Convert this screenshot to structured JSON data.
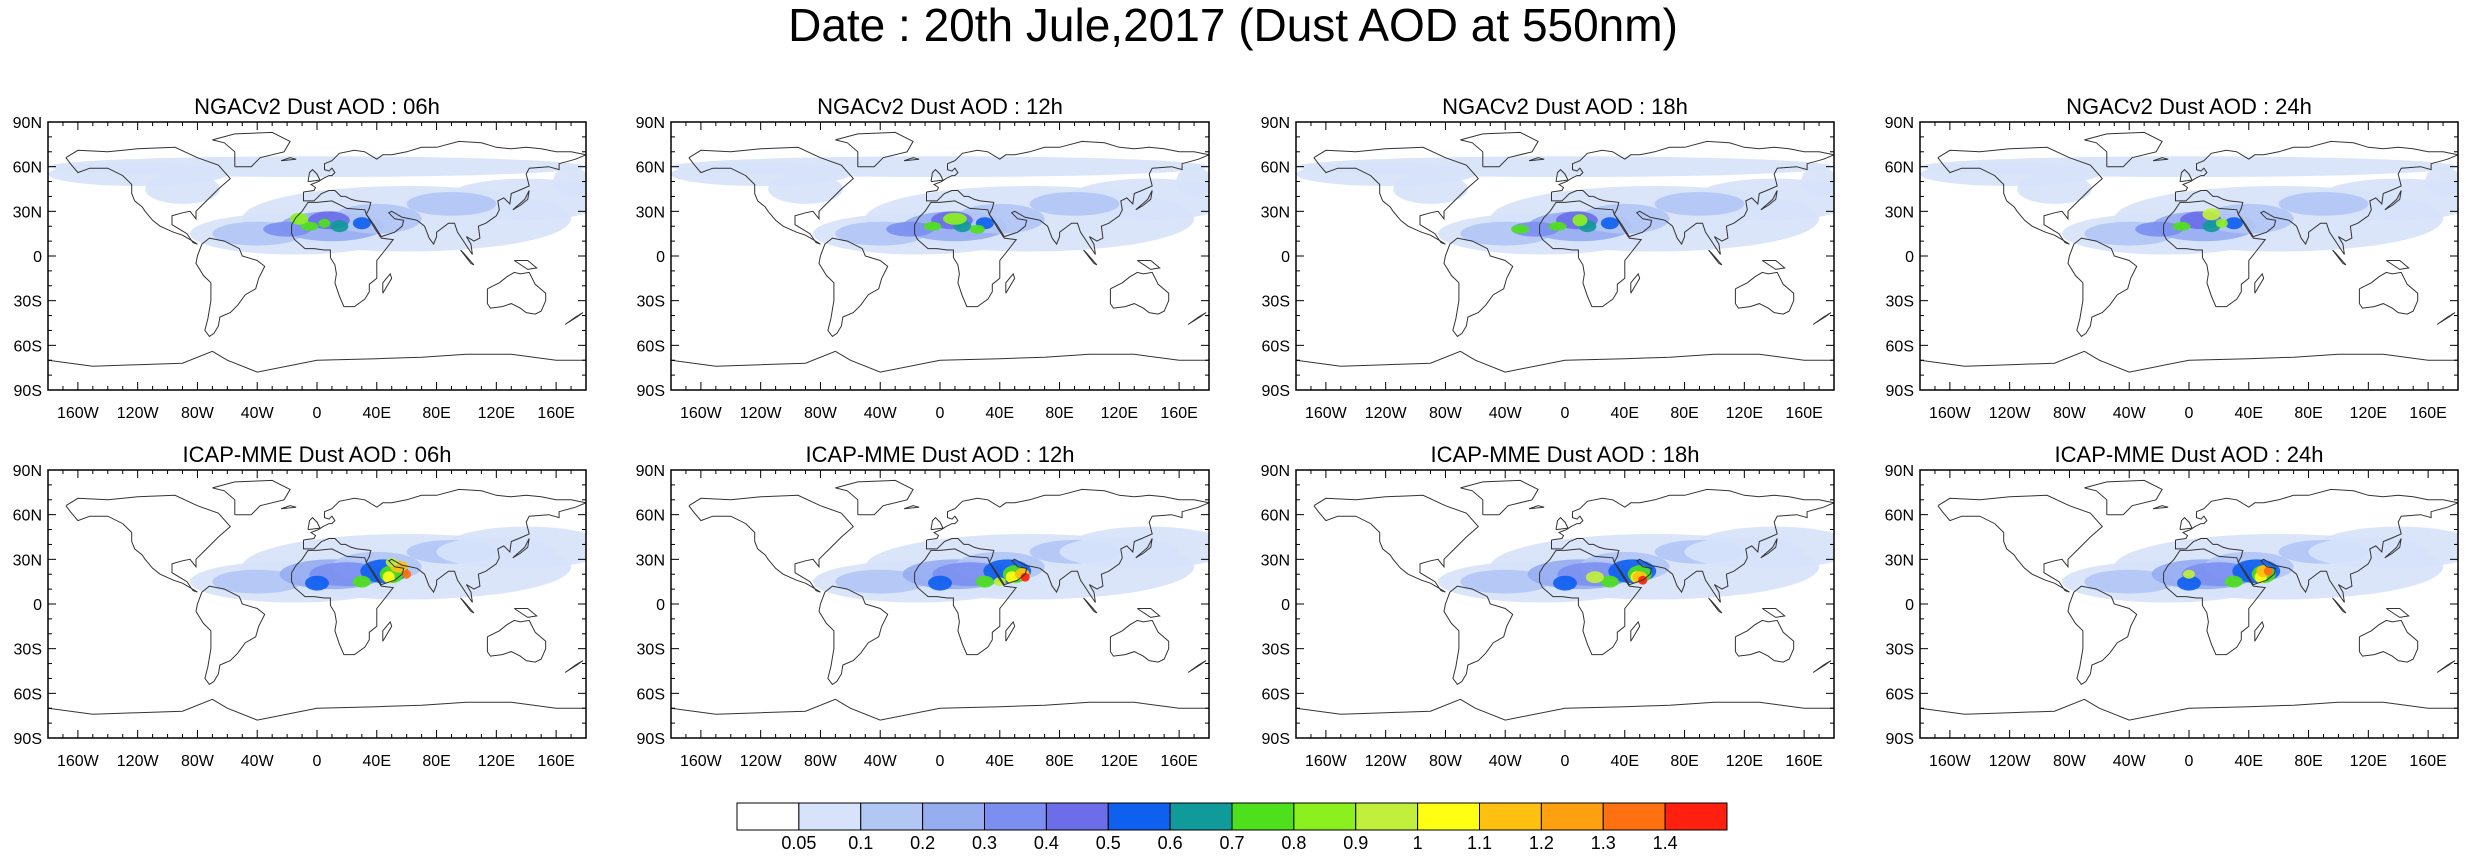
{
  "title": "Date : 20th Jule,2017 (Dust AOD at 550nm)",
  "lat_tick_labels": [
    "90N",
    "60N",
    "30N",
    "0",
    "30S",
    "60S",
    "90S"
  ],
  "lon_tick_labels": [
    "160W",
    "120W",
    "80W",
    "40W",
    "0",
    "40E",
    "80E",
    "120E",
    "160E"
  ],
  "panels": [
    {
      "title": "NGACv2 Dust AOD : 06h",
      "model": "NGACv2",
      "lead": "06h",
      "peak_aod": 0.9
    },
    {
      "title": "NGACv2 Dust AOD : 12h",
      "model": "NGACv2",
      "lead": "12h",
      "peak_aod": 0.9
    },
    {
      "title": "NGACv2 Dust AOD : 18h",
      "model": "NGACv2",
      "lead": "18h",
      "peak_aod": 0.9
    },
    {
      "title": "NGACv2 Dust AOD : 24h",
      "model": "NGACv2",
      "lead": "24h",
      "peak_aod": 1.0
    },
    {
      "title": "ICAP-MME Dust AOD : 06h",
      "model": "ICAP-MME",
      "lead": "06h",
      "peak_aod": 1.3
    },
    {
      "title": "ICAP-MME Dust AOD : 12h",
      "model": "ICAP-MME",
      "lead": "12h",
      "peak_aod": 1.4
    },
    {
      "title": "ICAP-MME Dust AOD : 18h",
      "model": "ICAP-MME",
      "lead": "18h",
      "peak_aod": 1.4
    },
    {
      "title": "ICAP-MME Dust AOD : 24h",
      "model": "ICAP-MME",
      "lead": "24h",
      "peak_aod": 1.2
    }
  ],
  "colorbar": {
    "labels": [
      "0.05",
      "0.1",
      "0.2",
      "0.3",
      "0.4",
      "0.5",
      "0.6",
      "0.7",
      "0.8",
      "0.9",
      "1",
      "1.1",
      "1.2",
      "1.3",
      "1.4"
    ],
    "colors": [
      "#ffffff",
      "#d7e3fa",
      "#b3c7f5",
      "#96adf0",
      "#7c8ff0",
      "#6b6ee8",
      "#1060f0",
      "#119a9a",
      "#4ee01c",
      "#8cf01e",
      "#c0f03c",
      "#ffff14",
      "#ffc010",
      "#ffa010",
      "#ff7010",
      "#ff2010"
    ]
  }
}
